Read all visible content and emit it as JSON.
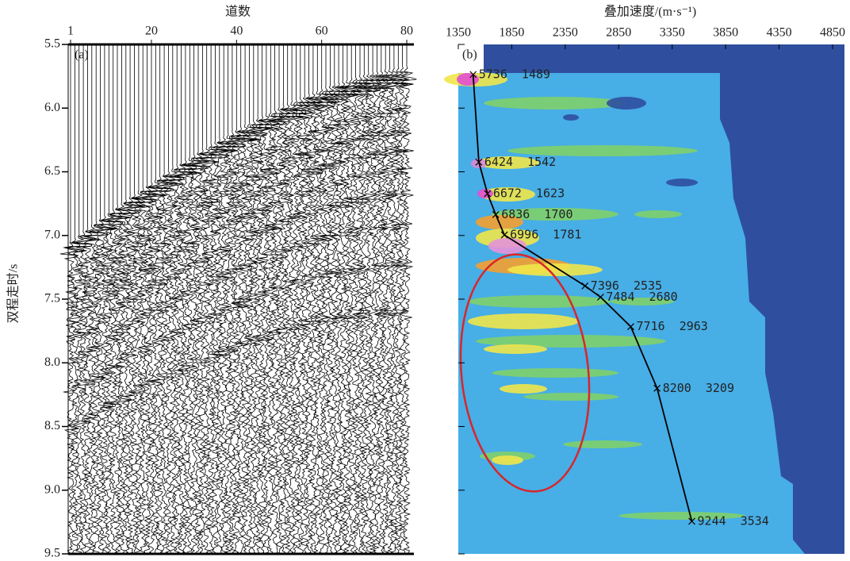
{
  "chart_data": [
    {
      "type": "gather",
      "panel_label": "(a)",
      "xlabel": "道数",
      "ylabel": "双程走时/s",
      "xlim": [
        1,
        80
      ],
      "xticks": [
        1,
        20,
        40,
        60,
        80
      ],
      "ylim": [
        5.5,
        9.5
      ],
      "y_inverted": true,
      "yticks": [
        5.5,
        {
          "value": 6,
          "label": "6.0"
        },
        6.5,
        {
          "value": 7,
          "label": "7.0"
        },
        7.5,
        {
          "value": 8,
          "label": "8.0"
        },
        8.5,
        {
          "value": 9,
          "label": "9.0"
        },
        9.5
      ]
    },
    {
      "type": "scatter",
      "panel_label": "(b)",
      "xlabel": "叠加速度/(m·s⁻¹)",
      "xlim": [
        1350,
        4850
      ],
      "xticks": [
        1350,
        1850,
        2350,
        2850,
        3350,
        3850,
        4350,
        4850
      ],
      "ylim": [
        5.5,
        9.5
      ],
      "y_inverted": true,
      "yticks": [
        5.5,
        6,
        6.5,
        7,
        7.5,
        8,
        8.5,
        9,
        9.5
      ],
      "color": "#000000",
      "x": [
        1489,
        1542,
        1623,
        1700,
        1781,
        2535,
        2680,
        2963,
        3209,
        3534
      ],
      "values": [
        5.736,
        6.424,
        6.672,
        6.836,
        6.996,
        7.396,
        7.484,
        7.716,
        8.2,
        9.244
      ],
      "value_labels": [
        "5736  1489",
        "6424  1542",
        "6672  1623",
        "6836  1700",
        "6996  1781",
        "7396  2535",
        "7484  2680",
        "7716  2963",
        "8200  3209",
        "9244  3534"
      ]
    }
  ]
}
